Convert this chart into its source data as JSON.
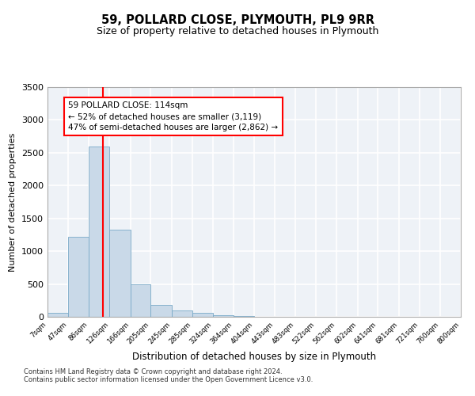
{
  "title": "59, POLLARD CLOSE, PLYMOUTH, PL9 9RR",
  "subtitle": "Size of property relative to detached houses in Plymouth",
  "xlabel": "Distribution of detached houses by size in Plymouth",
  "ylabel": "Number of detached properties",
  "footnote1": "Contains HM Land Registry data © Crown copyright and database right 2024.",
  "footnote2": "Contains public sector information licensed under the Open Government Licence v3.0.",
  "bar_color": "#c9d9e8",
  "bar_edge_color": "#7aaac8",
  "vline_x": 114,
  "vline_color": "red",
  "annotation_title": "59 POLLARD CLOSE: 114sqm",
  "annotation_line1": "← 52% of detached houses are smaller (3,119)",
  "annotation_line2": "47% of semi-detached houses are larger (2,862) →",
  "annotation_box_color": "red",
  "ylim": [
    0,
    3500
  ],
  "yticks": [
    0,
    500,
    1000,
    1500,
    2000,
    2500,
    3000,
    3500
  ],
  "bin_edges": [
    7,
    47,
    86,
    126,
    166,
    205,
    245,
    285,
    324,
    364,
    404,
    443,
    483,
    522,
    562,
    602,
    641,
    681,
    721,
    760,
    800
  ],
  "bin_labels": [
    "7sqm",
    "47sqm",
    "86sqm",
    "126sqm",
    "166sqm",
    "205sqm",
    "245sqm",
    "285sqm",
    "324sqm",
    "364sqm",
    "404sqm",
    "443sqm",
    "483sqm",
    "522sqm",
    "562sqm",
    "602sqm",
    "641sqm",
    "681sqm",
    "721sqm",
    "760sqm",
    "800sqm"
  ],
  "bar_heights": [
    55,
    1220,
    2590,
    1330,
    490,
    180,
    100,
    55,
    30,
    15,
    5,
    5,
    5,
    0,
    0,
    0,
    0,
    0,
    0,
    0
  ],
  "bg_color": "#eef2f7",
  "grid_color": "#ffffff",
  "fig_bg": "#ffffff"
}
